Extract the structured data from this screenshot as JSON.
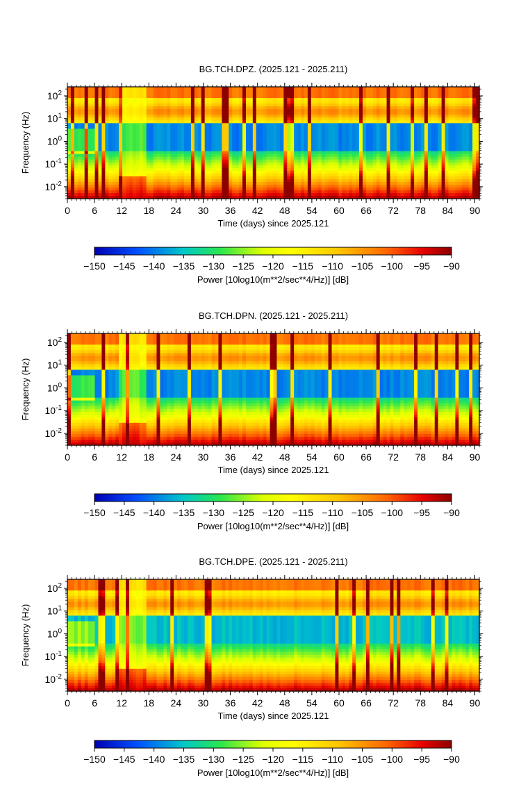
{
  "chart_data": [
    {
      "type": "heatmap",
      "title": "BG.TCH.DPZ. (2025.121 - 2025.211)",
      "xlabel": "Time (days) since 2025.121",
      "ylabel": "Frequency (Hz)",
      "xlim": [
        0,
        91
      ],
      "ylim": [
        0.003,
        250
      ],
      "y_scale": "log",
      "x_ticks": [
        "0",
        "6",
        "12",
        "18",
        "24",
        "30",
        "36",
        "42",
        "48",
        "54",
        "60",
        "66",
        "72",
        "78",
        "84",
        "90"
      ],
      "y_ticks": [
        "10^-2",
        "10^-1",
        "10^0",
        "10^1",
        "10^2"
      ],
      "colorbar": {
        "label": "Power [10log10(m**2/sec**4/Hz)] [dB]",
        "range": [
          -150,
          -90
        ],
        "ticks": [
          "-150",
          "-145",
          "-140",
          "-135",
          "-130",
          "-125",
          "-120",
          "-115",
          "-110",
          "-105",
          "-100",
          "-95",
          "-90"
        ]
      }
    },
    {
      "type": "heatmap",
      "title": "BG.TCH.DPN. (2025.121 - 2025.211)",
      "xlabel": "Time (days) since 2025.121",
      "ylabel": "Frequency (Hz)",
      "xlim": [
        0,
        91
      ],
      "ylim": [
        0.003,
        250
      ],
      "y_scale": "log",
      "x_ticks": [
        "0",
        "6",
        "12",
        "18",
        "24",
        "30",
        "36",
        "42",
        "48",
        "54",
        "60",
        "66",
        "72",
        "78",
        "84",
        "90"
      ],
      "y_ticks": [
        "10^-2",
        "10^-1",
        "10^0",
        "10^1",
        "10^2"
      ],
      "colorbar": {
        "label": "Power [10log10(m**2/sec**4/Hz)] [dB]",
        "range": [
          -150,
          -90
        ],
        "ticks": [
          "-150",
          "-145",
          "-140",
          "-135",
          "-130",
          "-125",
          "-120",
          "-115",
          "-110",
          "-105",
          "-100",
          "-95",
          "-90"
        ]
      }
    },
    {
      "type": "heatmap",
      "title": "BG.TCH.DPE. (2025.121 - 2025.211)",
      "xlabel": "Time (days) since 2025.121",
      "ylabel": "Frequency (Hz)",
      "xlim": [
        0,
        91
      ],
      "ylim": [
        0.003,
        250
      ],
      "y_scale": "log",
      "x_ticks": [
        "0",
        "6",
        "12",
        "18",
        "24",
        "30",
        "36",
        "42",
        "48",
        "54",
        "60",
        "66",
        "72",
        "78",
        "84",
        "90"
      ],
      "y_ticks": [
        "10^-2",
        "10^-1",
        "10^0",
        "10^1",
        "10^2"
      ],
      "colorbar": {
        "label": "Power [10log10(m**2/sec**4/Hz)] [dB]",
        "range": [
          -150,
          -90
        ],
        "ticks": [
          "-150",
          "-145",
          "-140",
          "-135",
          "-130",
          "-125",
          "-120",
          "-115",
          "-110",
          "-105",
          "-100",
          "-95",
          "-90"
        ]
      }
    }
  ]
}
